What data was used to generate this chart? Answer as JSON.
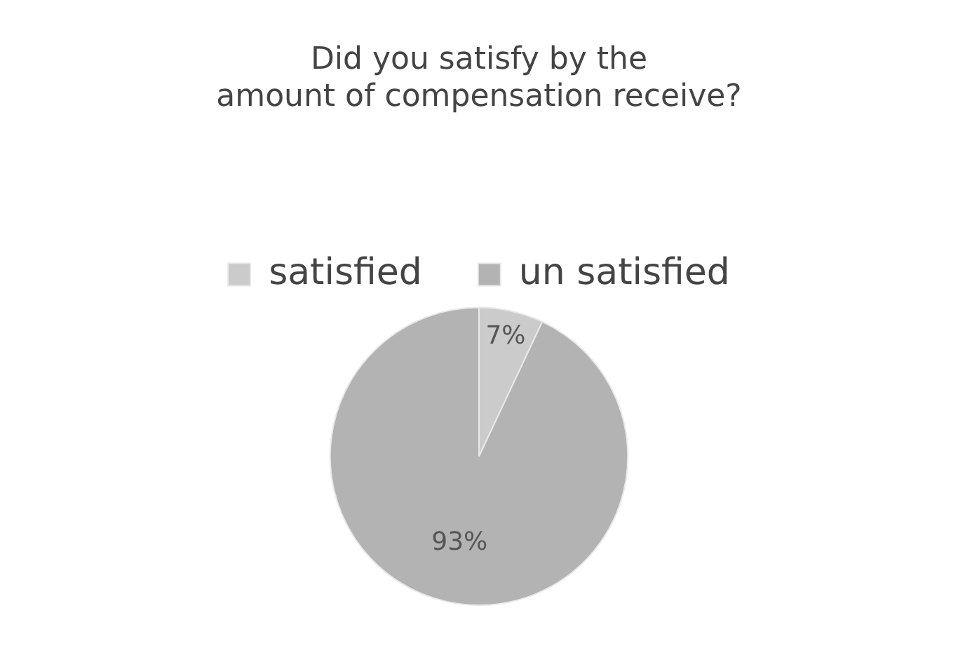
{
  "chart_data": {
    "type": "pie",
    "title": "Did you satisfy by the amount of compensation receive?",
    "categories": [
      "satisfied",
      "un satisfied"
    ],
    "values": [
      7,
      93
    ],
    "colors": [
      "#cbcbcb",
      "#b3b3b3"
    ],
    "value_labels": [
      "7%",
      "93%"
    ],
    "legend": "top"
  }
}
